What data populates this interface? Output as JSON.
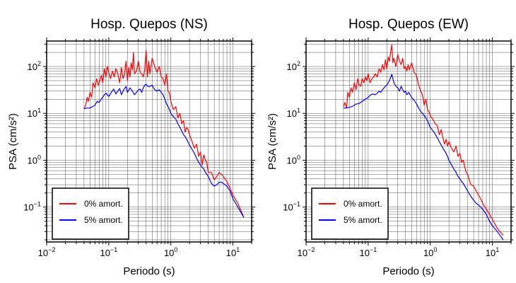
{
  "chart_data": [
    {
      "type": "line",
      "title": "Hosp. Quepos (NS)",
      "xlabel": "Periodo (s)",
      "ylabel": "PSA (cm/s²)",
      "x_scale": "log",
      "y_scale": "log",
      "xlim": [
        0.01,
        20
      ],
      "ylim": [
        0.018,
        350
      ],
      "grid": true,
      "legend_position": "bottom-left",
      "x_ticks": [
        {
          "value": 0.01,
          "base": "10",
          "exp": "−2"
        },
        {
          "value": 0.1,
          "base": "10",
          "exp": "−1"
        },
        {
          "value": 1,
          "base": "10",
          "exp": "0"
        },
        {
          "value": 10,
          "base": "10",
          "exp": "1"
        }
      ],
      "y_ticks": [
        {
          "value": 0.1,
          "base": "10",
          "exp": "−1"
        },
        {
          "value": 1,
          "base": "10",
          "exp": "0"
        },
        {
          "value": 10,
          "base": "10",
          "exp": "1"
        },
        {
          "value": 100,
          "base": "10",
          "exp": "2"
        }
      ],
      "series": [
        {
          "name": "0% amort.",
          "color": "#ff0000",
          "x": [
            0.04,
            0.042,
            0.045,
            0.047,
            0.05,
            0.053,
            0.056,
            0.06,
            0.064,
            0.068,
            0.072,
            0.076,
            0.08,
            0.085,
            0.09,
            0.095,
            0.1,
            0.107,
            0.115,
            0.123,
            0.13,
            0.14,
            0.15,
            0.16,
            0.17,
            0.18,
            0.19,
            0.2,
            0.21,
            0.22,
            0.23,
            0.24,
            0.25,
            0.26,
            0.28,
            0.3,
            0.32,
            0.34,
            0.36,
            0.38,
            0.4,
            0.42,
            0.44,
            0.46,
            0.5,
            0.55,
            0.6,
            0.65,
            0.7,
            0.75,
            0.8,
            0.85,
            0.9,
            0.95,
            1.0,
            1.1,
            1.2,
            1.3,
            1.4,
            1.5,
            1.6,
            1.7,
            1.8,
            1.9,
            2.0,
            2.2,
            2.4,
            2.6,
            2.8,
            3.0,
            3.2,
            3.4,
            3.6,
            3.8,
            4.0,
            4.5,
            5.0,
            5.5,
            6.0,
            6.5,
            7.0,
            8.0,
            9.0,
            10.0,
            12.0,
            15.0
          ],
          "y": [
            13,
            14,
            22,
            18,
            28,
            22,
            45,
            35,
            55,
            40,
            50,
            65,
            45,
            90,
            60,
            100,
            75,
            55,
            80,
            60,
            90,
            70,
            45,
            95,
            55,
            70,
            130,
            50,
            95,
            60,
            120,
            85,
            200,
            70,
            80,
            130,
            75,
            70,
            60,
            85,
            220,
            60,
            130,
            70,
            150,
            100,
            75,
            100,
            60,
            55,
            40,
            70,
            30,
            28,
            18,
            12,
            14,
            8,
            10,
            6,
            7,
            4,
            5,
            4.5,
            3.5,
            2.5,
            1.8,
            2.2,
            1.2,
            1.5,
            0.8,
            1.3,
            1.0,
            0.9,
            0.55,
            0.55,
            0.38,
            0.45,
            0.55,
            0.5,
            0.45,
            0.35,
            0.25,
            0.18,
            0.12,
            0.06
          ]
        },
        {
          "name": "5% amort.",
          "color": "#0000ff",
          "x": [
            0.04,
            0.045,
            0.05,
            0.055,
            0.06,
            0.065,
            0.07,
            0.075,
            0.08,
            0.085,
            0.09,
            0.1,
            0.11,
            0.12,
            0.13,
            0.14,
            0.15,
            0.16,
            0.17,
            0.18,
            0.19,
            0.2,
            0.22,
            0.24,
            0.26,
            0.28,
            0.3,
            0.32,
            0.34,
            0.36,
            0.38,
            0.4,
            0.42,
            0.45,
            0.5,
            0.55,
            0.6,
            0.65,
            0.7,
            0.75,
            0.8,
            0.85,
            0.9,
            0.95,
            1.0,
            1.1,
            1.2,
            1.3,
            1.4,
            1.5,
            1.6,
            1.7,
            1.8,
            1.9,
            2.0,
            2.2,
            2.4,
            2.6,
            2.8,
            3.0,
            3.2,
            3.4,
            3.6,
            3.8,
            4.0,
            4.5,
            5.0,
            5.5,
            6.0,
            6.5,
            7.0,
            8.0,
            9.0,
            10.0,
            12.0,
            15.0
          ],
          "y": [
            12.5,
            13,
            13,
            14,
            15,
            18,
            17,
            20,
            22,
            25,
            27,
            23,
            28,
            33,
            26,
            30,
            34,
            25,
            30,
            34,
            38,
            28,
            35,
            30,
            25,
            28,
            32,
            33,
            28,
            35,
            40,
            42,
            38,
            37,
            40,
            32,
            30,
            32,
            28,
            25,
            20,
            16,
            14,
            12,
            10,
            8.5,
            7.5,
            6,
            5,
            4.2,
            3.5,
            3.2,
            2.8,
            2.4,
            2.1,
            1.7,
            1.4,
            1.1,
            0.9,
            0.8,
            0.7,
            0.65,
            0.55,
            0.5,
            0.45,
            0.32,
            0.28,
            0.3,
            0.34,
            0.34,
            0.32,
            0.28,
            0.22,
            0.15,
            0.1,
            0.06
          ]
        }
      ]
    },
    {
      "type": "line",
      "title": "Hosp. Quepos (EW)",
      "xlabel": "Periodo (s)",
      "ylabel": "PSA (cm/s²)",
      "x_scale": "log",
      "y_scale": "log",
      "xlim": [
        0.01,
        20
      ],
      "ylim": [
        0.018,
        350
      ],
      "grid": true,
      "legend_position": "bottom-left",
      "x_ticks": [
        {
          "value": 0.01,
          "base": "10",
          "exp": "−2"
        },
        {
          "value": 0.1,
          "base": "10",
          "exp": "−1"
        },
        {
          "value": 1,
          "base": "10",
          "exp": "0"
        },
        {
          "value": 10,
          "base": "10",
          "exp": "1"
        }
      ],
      "y_ticks": [
        {
          "value": 0.1,
          "base": "10",
          "exp": "−1"
        },
        {
          "value": 1,
          "base": "10",
          "exp": "0"
        },
        {
          "value": 10,
          "base": "10",
          "exp": "1"
        },
        {
          "value": 100,
          "base": "10",
          "exp": "2"
        }
      ],
      "series": [
        {
          "name": "0% amort.",
          "color": "#ff0000",
          "x": [
            0.04,
            0.042,
            0.045,
            0.047,
            0.05,
            0.053,
            0.056,
            0.06,
            0.064,
            0.068,
            0.072,
            0.076,
            0.08,
            0.085,
            0.09,
            0.095,
            0.1,
            0.107,
            0.115,
            0.123,
            0.13,
            0.14,
            0.15,
            0.16,
            0.17,
            0.18,
            0.19,
            0.2,
            0.21,
            0.22,
            0.23,
            0.24,
            0.25,
            0.26,
            0.28,
            0.3,
            0.32,
            0.34,
            0.36,
            0.38,
            0.4,
            0.42,
            0.44,
            0.46,
            0.5,
            0.55,
            0.6,
            0.65,
            0.7,
            0.75,
            0.8,
            0.85,
            0.9,
            0.95,
            1.0,
            1.1,
            1.2,
            1.3,
            1.4,
            1.5,
            1.6,
            1.7,
            1.8,
            1.9,
            2.0,
            2.2,
            2.4,
            2.6,
            2.8,
            3.0,
            3.2,
            3.4,
            3.6,
            3.8,
            4.0,
            4.5,
            5.0,
            5.5,
            6.0,
            6.5,
            7.0,
            8.0,
            9.0,
            10.0,
            12.0,
            15.0
          ],
          "y": [
            14,
            17,
            13,
            28,
            22,
            35,
            28,
            45,
            32,
            55,
            40,
            38,
            55,
            45,
            60,
            50,
            70,
            45,
            55,
            60,
            70,
            60,
            90,
            75,
            110,
            85,
            140,
            90,
            160,
            130,
            200,
            290,
            120,
            150,
            100,
            180,
            130,
            110,
            150,
            90,
            100,
            80,
            110,
            85,
            120,
            75,
            65,
            40,
            30,
            25,
            15,
            20,
            12,
            11,
            9,
            7.5,
            6,
            5.5,
            3.5,
            4.5,
            3,
            2.2,
            2.8,
            2,
            2.5,
            1.8,
            1.5,
            2.0,
            1.2,
            1.4,
            0.9,
            1.0,
            0.7,
            0.55,
            0.5,
            0.3,
            0.28,
            0.22,
            0.18,
            0.15,
            0.12,
            0.09,
            0.07,
            0.055,
            0.035,
            0.025
          ]
        },
        {
          "name": "5% amort.",
          "color": "#0000ff",
          "x": [
            0.04,
            0.045,
            0.05,
            0.055,
            0.06,
            0.065,
            0.07,
            0.075,
            0.08,
            0.085,
            0.09,
            0.1,
            0.11,
            0.12,
            0.13,
            0.14,
            0.15,
            0.16,
            0.17,
            0.18,
            0.19,
            0.2,
            0.22,
            0.24,
            0.26,
            0.28,
            0.3,
            0.32,
            0.34,
            0.36,
            0.38,
            0.4,
            0.42,
            0.45,
            0.5,
            0.55,
            0.6,
            0.65,
            0.7,
            0.75,
            0.8,
            0.85,
            0.9,
            0.95,
            1.0,
            1.1,
            1.2,
            1.3,
            1.4,
            1.5,
            1.6,
            1.7,
            1.8,
            1.9,
            2.0,
            2.2,
            2.4,
            2.6,
            2.8,
            3.0,
            3.2,
            3.4,
            3.6,
            3.8,
            4.0,
            4.5,
            5.0,
            5.5,
            6.0,
            6.5,
            7.0,
            8.0,
            9.0,
            10.0,
            12.0,
            15.0
          ],
          "y": [
            13,
            13,
            13.5,
            14,
            15,
            16,
            16,
            17,
            18,
            19,
            20,
            22,
            25,
            26,
            25,
            27,
            30,
            28,
            32,
            35,
            38,
            40,
            50,
            68,
            45,
            38,
            35,
            30,
            38,
            32,
            28,
            30,
            25,
            28,
            22,
            19,
            16,
            13,
            11,
            10,
            9,
            8,
            7,
            6,
            5,
            4.3,
            3.6,
            3.0,
            2.5,
            2.1,
            1.8,
            1.6,
            1.4,
            1.2,
            1.0,
            0.8,
            0.65,
            0.55,
            0.45,
            0.4,
            0.35,
            0.32,
            0.28,
            0.25,
            0.22,
            0.17,
            0.14,
            0.12,
            0.11,
            0.1,
            0.09,
            0.07,
            0.05,
            0.04,
            0.03,
            0.02
          ]
        }
      ]
    }
  ]
}
